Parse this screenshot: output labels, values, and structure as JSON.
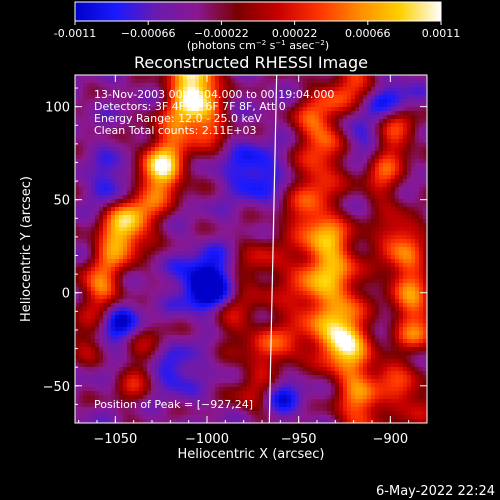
{
  "colorbar": {
    "ticks": [
      -0.0011,
      -0.00066,
      -0.00022,
      0.00022,
      0.00066,
      0.0011
    ],
    "tick_labels": [
      "-0.0011",
      "−0.00066",
      "−0.00022",
      "0.00022",
      "0.00066",
      "0.0011"
    ],
    "unit_parts": {
      "open": "(photons cm",
      "e1": "−2",
      "mid1": " s",
      "e2": "−1",
      "mid2": " asec",
      "e3": "−2",
      "close": ")"
    },
    "range": [
      -0.0011,
      0.0011
    ],
    "stops": [
      "#0000c8",
      "#1a1aff",
      "#6a1ab0",
      "#8a1890",
      "#7a0000",
      "#c80000",
      "#ff3300",
      "#ff8c00",
      "#ffd000",
      "#ffffff"
    ]
  },
  "chart_data": {
    "type": "heatmap",
    "title": "Reconstructed RHESSI Image",
    "xlabel": "Heliocentric X (arcsec)",
    "ylabel": "Heliocentric Y (arcsec)",
    "xlim": [
      -1072,
      -880
    ],
    "ylim": [
      -70,
      117
    ],
    "xticks": [
      -1050,
      -1000,
      -950,
      -900
    ],
    "xtick_labels": [
      "−1050",
      "−1000",
      "−950",
      "−900"
    ],
    "yticks": [
      -50,
      0,
      50,
      100
    ],
    "ytick_labels": [
      "−50",
      "0",
      "50",
      "100"
    ],
    "limb_line": [
      [
        -962,
        117
      ],
      [
        -966,
        -70
      ]
    ],
    "peak_marker": [
      -927,
      24
    ],
    "annotations": [
      "13-Nov-2003 00:13:04.000 to 00:19:04.000",
      "Detectors: 3F 4F 5F 6F 7F 8F, Att 0",
      "Energy Range: 12.0 - 25.0 keV",
      "Clean     Total counts: 2.11E+03"
    ],
    "peak_label": "Position of Peak = [−927,24]",
    "grid": false,
    "structures": [
      {
        "kind": "ridge",
        "x": -1025,
        "y": 70,
        "ex": -1005,
        "ey": 115,
        "v": 0.00085,
        "w": 9
      },
      {
        "kind": "ridge",
        "x": -1010,
        "y": 118,
        "ex": -1000,
        "ey": 90,
        "v": 0.0008,
        "w": 8
      },
      {
        "kind": "ridge",
        "x": -1045,
        "y": 30,
        "ex": -1025,
        "ey": 62,
        "v": 0.0008,
        "w": 9
      },
      {
        "kind": "ridge",
        "x": -1060,
        "y": 5,
        "ex": -1045,
        "ey": 40,
        "v": 0.0006,
        "w": 8
      },
      {
        "kind": "ridge",
        "x": -1068,
        "y": -25,
        "ex": -1055,
        "ey": 0,
        "v": 0.00055,
        "w": 8
      },
      {
        "kind": "ridge",
        "x": -1040,
        "y": -50,
        "ex": -1030,
        "ey": -28,
        "v": 0.0005,
        "w": 8
      },
      {
        "kind": "ridge",
        "x": -985,
        "y": -15,
        "ex": -970,
        "ey": 20,
        "v": 0.0005,
        "w": 9
      },
      {
        "kind": "ridge",
        "x": -975,
        "y": -55,
        "ex": -970,
        "ey": -30,
        "v": 0.00055,
        "w": 8
      },
      {
        "kind": "ridge",
        "x": -955,
        "y": -30,
        "ex": -948,
        "ey": 10,
        "v": 0.0006,
        "w": 8
      },
      {
        "kind": "ridge",
        "x": -945,
        "y": 40,
        "ex": -935,
        "ey": 80,
        "v": 0.0008,
        "w": 9
      },
      {
        "kind": "ridge",
        "x": -940,
        "y": 95,
        "ex": -920,
        "ey": 115,
        "v": 0.00075,
        "w": 9
      },
      {
        "kind": "ridge",
        "x": -932,
        "y": 25,
        "ex": -928,
        "ey": -20,
        "v": 0.0011,
        "w": 10
      },
      {
        "kind": "ridge",
        "x": -925,
        "y": -30,
        "ex": -915,
        "ey": -65,
        "v": 0.0009,
        "w": 9
      },
      {
        "kind": "ridge",
        "x": -905,
        "y": 60,
        "ex": -895,
        "ey": 90,
        "v": 0.0007,
        "w": 8
      },
      {
        "kind": "ridge",
        "x": -895,
        "y": 30,
        "ex": -885,
        "ey": -20,
        "v": 0.0009,
        "w": 9
      },
      {
        "kind": "ridge",
        "x": -900,
        "y": -45,
        "ex": -885,
        "ey": -60,
        "v": 0.00065,
        "w": 8
      },
      {
        "kind": "blob",
        "x": -1000,
        "y": 5,
        "v": -0.0011,
        "w": 10
      },
      {
        "kind": "blob",
        "x": -975,
        "y": 65,
        "v": -0.0006,
        "w": 10
      },
      {
        "kind": "blob",
        "x": -1050,
        "y": 60,
        "v": -0.0005,
        "w": 9
      },
      {
        "kind": "blob",
        "x": -1050,
        "y": -15,
        "v": -0.0007,
        "w": 9
      },
      {
        "kind": "blob",
        "x": -920,
        "y": 85,
        "v": -0.0005,
        "w": 9
      },
      {
        "kind": "blob",
        "x": -900,
        "y": 105,
        "v": -0.0006,
        "w": 8
      },
      {
        "kind": "blob",
        "x": -1020,
        "y": -40,
        "v": -0.0006,
        "w": 9
      },
      {
        "kind": "blob",
        "x": -960,
        "y": -55,
        "v": -0.0005,
        "w": 8
      }
    ]
  },
  "footer": {
    "date": "6-May-2022 22:24"
  }
}
